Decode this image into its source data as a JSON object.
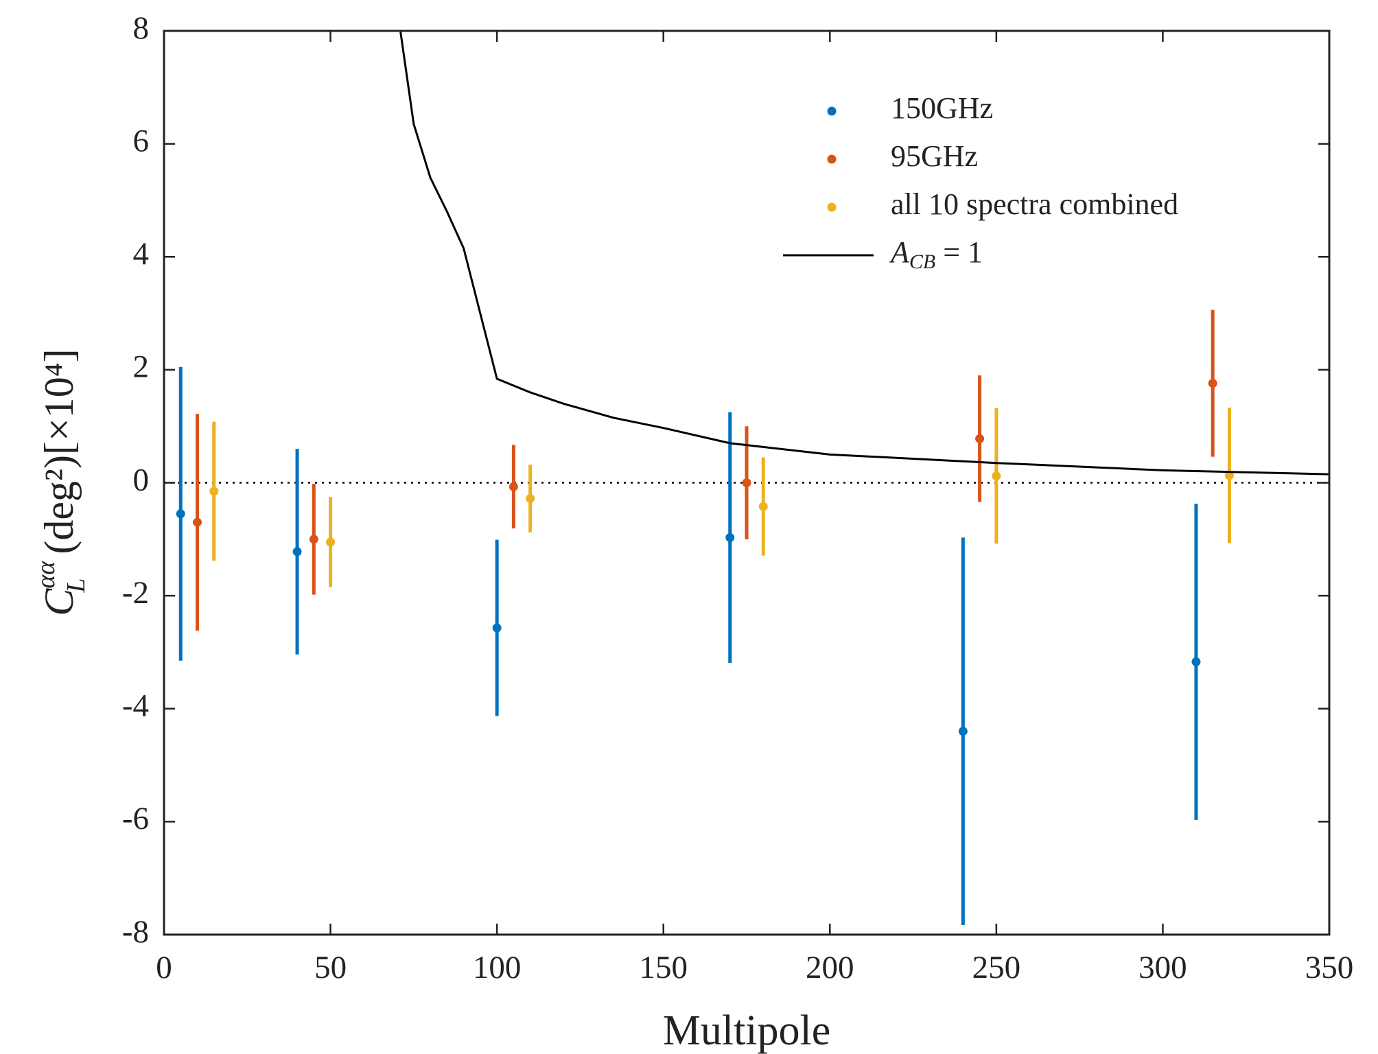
{
  "chart_data": {
    "type": "errorbar",
    "xlabel": "Multipole",
    "ylabel": {
      "main": "C",
      "sub": "L",
      "sup": "αα",
      "rest": " (deg²)[×10⁴]"
    },
    "xlim": [
      0,
      350
    ],
    "xticks": [
      0,
      50,
      100,
      150,
      200,
      250,
      300,
      350
    ],
    "ylim": [
      -8,
      8
    ],
    "yticks": [
      -8,
      -6,
      -4,
      -2,
      0,
      2,
      4,
      6,
      8
    ],
    "hline": 0,
    "legend": "upper right",
    "series": [
      {
        "name": "150GHz",
        "type": "errorbar",
        "color": "#0072bd",
        "x": [
          5,
          40,
          100,
          170,
          240,
          310
        ],
        "values": [
          -0.55,
          -1.22,
          -2.57,
          -0.97,
          -4.4,
          -3.17
        ],
        "errors": [
          2.6,
          1.82,
          1.56,
          2.22,
          3.43,
          2.8
        ]
      },
      {
        "name": "95GHz",
        "type": "errorbar",
        "color": "#d95319",
        "x": [
          10,
          45,
          105,
          175,
          245,
          315
        ],
        "values": [
          -0.7,
          -1.0,
          -0.07,
          0.0,
          0.78,
          1.76
        ],
        "errors": [
          1.92,
          0.98,
          0.74,
          1.0,
          1.12,
          1.3
        ]
      },
      {
        "name": "all 10 spectra combined",
        "type": "errorbar",
        "color": "#edb120",
        "x": [
          15,
          50,
          110,
          180,
          250,
          320
        ],
        "values": [
          -0.15,
          -1.05,
          -0.28,
          -0.42,
          0.12,
          0.13
        ],
        "errors": [
          1.23,
          0.8,
          0.6,
          0.87,
          1.2,
          1.2
        ]
      },
      {
        "name": "A",
        "name_sub": "CB",
        "name_rest": " = 1",
        "type": "line",
        "color": "#000000",
        "x": [
          71,
          75,
          80,
          85,
          90,
          100,
          110,
          120,
          135,
          150,
          170,
          200,
          250,
          300,
          350
        ],
        "values": [
          8,
          6.35,
          5.4,
          4.8,
          4.15,
          1.84,
          1.6,
          1.4,
          1.15,
          0.97,
          0.7,
          0.5,
          0.35,
          0.22,
          0.15
        ]
      }
    ]
  }
}
